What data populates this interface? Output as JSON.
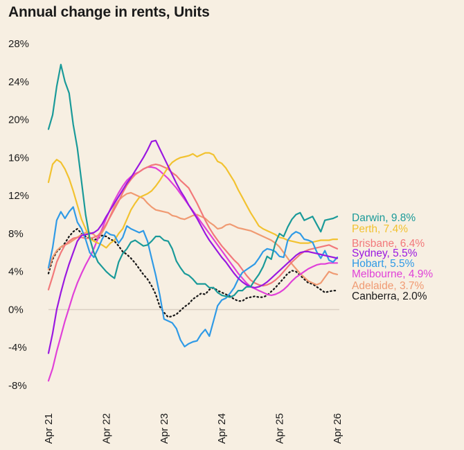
{
  "chart_data": {
    "type": "line",
    "title": "Annual change in rents, Units",
    "x_ticks": [
      "Apr 21",
      "Apr 22",
      "Apr 23",
      "Apr 24",
      "Apr 25",
      "Apr 26"
    ],
    "y_ticks": [
      "28%",
      "24%",
      "20%",
      "16%",
      "12%",
      "8%",
      "4%",
      "0%",
      "-4%",
      "-8%"
    ],
    "ylim": [
      -8,
      28
    ],
    "x_range": [
      "2021-04",
      "2026-04"
    ],
    "x_unit": "months",
    "zero_line": true,
    "grid": false,
    "legend_position": "right",
    "series": [
      {
        "key": "darwin",
        "name": "Darwin, 9.8%",
        "color": "#1a9a99",
        "dash": false,
        "values": [
          19.0,
          20.5,
          23.5,
          25.8,
          24.0,
          22.8,
          19.5,
          17.0,
          13.5,
          10.0,
          7.5,
          6.0,
          5.0,
          4.5,
          4.0,
          3.6,
          3.3,
          5.0,
          5.9,
          6.4,
          7.1,
          7.3,
          7.0,
          6.7,
          6.8,
          7.2,
          7.7,
          7.7,
          7.3,
          7.2,
          6.4,
          5.1,
          4.4,
          3.8,
          3.6,
          3.2,
          2.7,
          2.7,
          2.7,
          2.3,
          2.3,
          1.8,
          1.5,
          1.4,
          1.3,
          1.5,
          2.0,
          2.0,
          2.4,
          2.4,
          3.1,
          3.7,
          4.5,
          5.6,
          5.3,
          7.0,
          8.0,
          7.7,
          8.7,
          9.5,
          10.0,
          10.2,
          9.4,
          9.6,
          9.8,
          9.0,
          8.2,
          9.4,
          9.5,
          9.6,
          9.8
        ]
      },
      {
        "key": "perth",
        "name": "Perth, 7.4%",
        "color": "#f2c230",
        "dash": false,
        "values": [
          13.4,
          15.3,
          15.8,
          15.5,
          14.8,
          13.8,
          12.5,
          11.0,
          9.5,
          8.5,
          7.5,
          7.2,
          7.0,
          6.8,
          6.5,
          7.0,
          7.3,
          8.0,
          8.5,
          9.5,
          10.5,
          11.2,
          11.8,
          12.0,
          12.2,
          12.5,
          13.0,
          13.6,
          14.3,
          15.0,
          15.5,
          15.8,
          16.0,
          16.1,
          16.2,
          16.4,
          16.1,
          16.3,
          16.5,
          16.5,
          16.3,
          15.6,
          15.4,
          14.9,
          14.2,
          13.5,
          12.6,
          11.8,
          11.0,
          10.2,
          9.5,
          8.8,
          8.5,
          8.3,
          8.1,
          7.9,
          7.6,
          7.5,
          7.3,
          7.2,
          7.1,
          7.0,
          7.0,
          7.0,
          7.1,
          7.2,
          7.3,
          7.3,
          7.3,
          7.4,
          7.4
        ]
      },
      {
        "key": "brisbane",
        "name": "Brisbane, 6.4%",
        "color": "#f2787a",
        "dash": false,
        "values": [
          2.1,
          3.5,
          5.0,
          6.0,
          6.8,
          7.2,
          7.5,
          7.6,
          7.6,
          7.5,
          7.5,
          7.6,
          7.8,
          8.3,
          9.0,
          9.8,
          10.6,
          11.4,
          12.3,
          13.1,
          13.7,
          14.2,
          14.5,
          14.8,
          15.0,
          15.2,
          15.3,
          15.2,
          15.0,
          14.8,
          14.4,
          14.1,
          13.6,
          13.2,
          12.8,
          12.0,
          11.2,
          10.3,
          9.4,
          8.6,
          7.9,
          7.3,
          6.7,
          6.2,
          5.7,
          5.2,
          4.8,
          4.2,
          3.6,
          3.1,
          2.8,
          2.6,
          2.5,
          2.6,
          2.8,
          3.1,
          3.5,
          4.0,
          4.5,
          5.0,
          5.4,
          5.8,
          6.1,
          6.3,
          6.4,
          6.5,
          6.6,
          6.7,
          6.8,
          6.6,
          6.4
        ]
      },
      {
        "key": "sydney",
        "name": "Sydney, 5.5%",
        "color": "#9a18e0",
        "dash": false,
        "values": [
          -4.6,
          -2.5,
          0.0,
          1.8,
          3.4,
          4.8,
          6.0,
          7.2,
          7.8,
          7.9,
          8.0,
          8.1,
          8.4,
          9.0,
          9.8,
          10.5,
          11.2,
          11.9,
          12.6,
          13.3,
          13.9,
          14.6,
          15.3,
          16.0,
          16.8,
          17.7,
          17.8,
          16.9,
          16.0,
          15.1,
          14.2,
          13.3,
          12.5,
          11.8,
          11.0,
          10.3,
          9.6,
          8.8,
          8.0,
          7.3,
          6.7,
          6.1,
          5.5,
          5.0,
          4.4,
          3.8,
          3.3,
          2.9,
          2.6,
          2.4,
          2.3,
          2.4,
          2.6,
          2.9,
          3.3,
          3.7,
          4.1,
          4.5,
          4.9,
          5.3,
          5.7,
          6.0,
          6.1,
          6.1,
          6.0,
          5.9,
          5.8,
          5.7,
          5.6,
          5.5,
          5.4
        ]
      },
      {
        "key": "hobart",
        "name": "Hobart, 5.5%",
        "color": "#2f9ae6",
        "dash": false,
        "values": [
          4.4,
          6.5,
          9.4,
          10.3,
          9.6,
          10.3,
          10.8,
          9.2,
          8.5,
          7.4,
          6.0,
          5.5,
          6.4,
          7.4,
          8.2,
          7.9,
          7.8,
          7.0,
          7.6,
          8.8,
          8.5,
          8.3,
          8.1,
          8.3,
          7.2,
          5.4,
          3.6,
          1.5,
          -1.0,
          -1.2,
          -1.4,
          -2.0,
          -3.2,
          -3.9,
          -3.6,
          -3.4,
          -3.3,
          -2.6,
          -2.1,
          -2.8,
          -1.2,
          0.4,
          1.0,
          1.2,
          1.7,
          2.3,
          3.2,
          3.9,
          4.2,
          4.5,
          4.8,
          5.4,
          6.1,
          6.4,
          6.3,
          6.1,
          5.6,
          5.5,
          7.3,
          7.9,
          8.2,
          8.0,
          7.4,
          7.3,
          7.1,
          6.1,
          5.4,
          6.2,
          5.2,
          5.0,
          5.5
        ]
      },
      {
        "key": "melbourne",
        "name": "Melbourne, 4.9%",
        "color": "#e040d8",
        "dash": false,
        "values": [
          -7.5,
          -6.2,
          -4.4,
          -2.8,
          -1.2,
          0.2,
          1.6,
          2.8,
          3.8,
          4.7,
          5.5,
          6.4,
          7.5,
          8.5,
          9.6,
          10.6,
          11.5,
          12.3,
          13.0,
          13.6,
          14.0,
          14.3,
          14.5,
          14.8,
          15.0,
          15.0,
          14.9,
          14.6,
          14.2,
          13.8,
          13.3,
          12.8,
          12.2,
          11.6,
          11.0,
          10.4,
          9.8,
          9.2,
          8.6,
          8.0,
          7.4,
          6.8,
          6.2,
          5.6,
          5.0,
          4.4,
          3.8,
          3.3,
          2.8,
          2.4,
          2.2,
          2.0,
          1.8,
          1.6,
          1.5,
          1.6,
          1.8,
          2.1,
          2.5,
          3.0,
          3.4,
          3.7,
          4.0,
          4.3,
          4.5,
          4.7,
          4.8,
          4.8,
          4.9,
          4.9,
          4.9
        ]
      },
      {
        "key": "adelaide",
        "name": "Adelaide, 3.7%",
        "color": "#f09a72",
        "dash": false,
        "values": [
          4.2,
          5.5,
          6.2,
          6.6,
          6.8,
          7.0,
          7.3,
          7.6,
          7.9,
          8.1,
          8.1,
          7.9,
          7.5,
          8.1,
          8.9,
          9.9,
          10.9,
          11.5,
          11.9,
          12.2,
          12.3,
          12.1,
          11.9,
          11.7,
          11.2,
          10.8,
          10.5,
          10.4,
          10.3,
          10.2,
          9.9,
          9.8,
          9.6,
          9.5,
          9.7,
          9.9,
          10.0,
          9.8,
          9.6,
          9.2,
          8.9,
          8.5,
          8.6,
          8.9,
          9.0,
          8.8,
          8.6,
          8.5,
          8.4,
          8.3,
          8.1,
          7.9,
          7.7,
          7.5,
          7.3,
          7.0,
          6.6,
          6.0,
          5.4,
          4.8,
          4.3,
          3.8,
          3.4,
          3.0,
          2.8,
          2.6,
          2.8,
          3.4,
          4.0,
          3.8,
          3.7
        ]
      },
      {
        "key": "canberra",
        "name": "Canberra, 2.0%",
        "color": "#1a1a1a",
        "dash": true,
        "values": [
          3.8,
          5.3,
          6.1,
          6.5,
          7.0,
          7.7,
          8.2,
          8.5,
          8.0,
          7.7,
          7.5,
          7.3,
          7.5,
          7.8,
          7.7,
          7.4,
          7.2,
          6.7,
          6.1,
          5.8,
          5.4,
          4.9,
          4.3,
          3.7,
          3.2,
          2.5,
          1.6,
          0.3,
          -0.3,
          -0.8,
          -0.7,
          -0.5,
          -0.1,
          0.3,
          0.6,
          1.1,
          1.4,
          1.7,
          1.6,
          2.1,
          2.3,
          2.0,
          1.8,
          1.6,
          1.4,
          1.1,
          0.9,
          0.9,
          1.2,
          1.3,
          1.4,
          1.3,
          1.3,
          1.5,
          1.9,
          2.3,
          2.8,
          3.3,
          3.8,
          4.1,
          4.0,
          3.6,
          3.2,
          2.8,
          2.7,
          2.4,
          2.1,
          1.8,
          1.9,
          2.0,
          2.0
        ]
      }
    ]
  }
}
